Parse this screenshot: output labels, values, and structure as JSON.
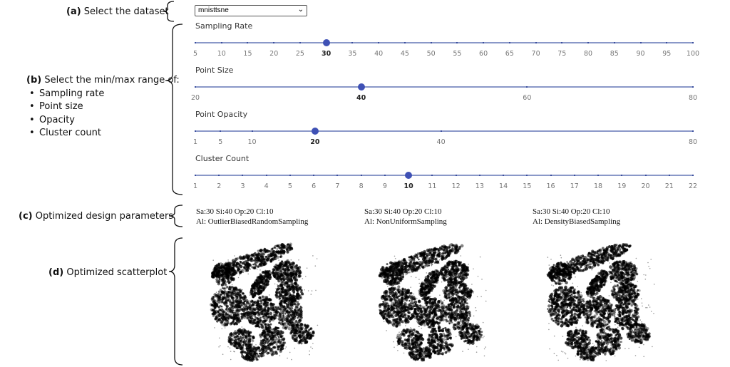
{
  "annotations": {
    "a": {
      "prefix": "(a)",
      "text": " Select the dataset"
    },
    "b": {
      "prefix": "(b)",
      "text": " Select the min/max range of:",
      "bullets": [
        "Sampling rate",
        "Point size",
        "Opacity",
        "Cluster count"
      ]
    },
    "c": {
      "prefix": "(c)",
      "text": " Optimized design parameters"
    },
    "d": {
      "prefix": "(d)",
      "text": " Optimized scatterplot"
    }
  },
  "dataset": {
    "selected": "mnisttsne",
    "icon": "chevron-down-icon"
  },
  "sliders": [
    {
      "label": "Sampling Rate",
      "min": 5,
      "max": 100,
      "value": 30,
      "ticks": [
        5,
        10,
        15,
        20,
        25,
        30,
        35,
        40,
        45,
        50,
        55,
        60,
        65,
        70,
        75,
        80,
        85,
        90,
        95,
        100
      ]
    },
    {
      "label": "Point Size",
      "min": 20,
      "max": 80,
      "value": 40,
      "ticks": [
        20,
        40,
        60,
        80
      ]
    },
    {
      "label": "Point Opacity",
      "min": 1,
      "max": 80,
      "value": 20,
      "ticks": [
        1,
        5,
        10,
        20,
        40,
        80
      ]
    },
    {
      "label": "Cluster Count",
      "min": 1,
      "max": 22,
      "value": 10,
      "ticks": [
        1,
        2,
        3,
        4,
        5,
        6,
        7,
        8,
        9,
        10,
        11,
        12,
        13,
        14,
        15,
        16,
        17,
        18,
        19,
        20,
        21,
        22
      ]
    }
  ],
  "results": [
    {
      "params": "Sa:30 Si:40 Op:20 Cl:10",
      "algorithm": "Al: OutlierBiasedRandomSampling"
    },
    {
      "params": "Sa:30 Si:40 Op:20 Cl:10",
      "algorithm": "Al: NonUniformSampling"
    },
    {
      "params": "Sa:30 Si:40 Op:20 Cl:10",
      "algorithm": "Al: DensityBiasedSampling"
    }
  ]
}
